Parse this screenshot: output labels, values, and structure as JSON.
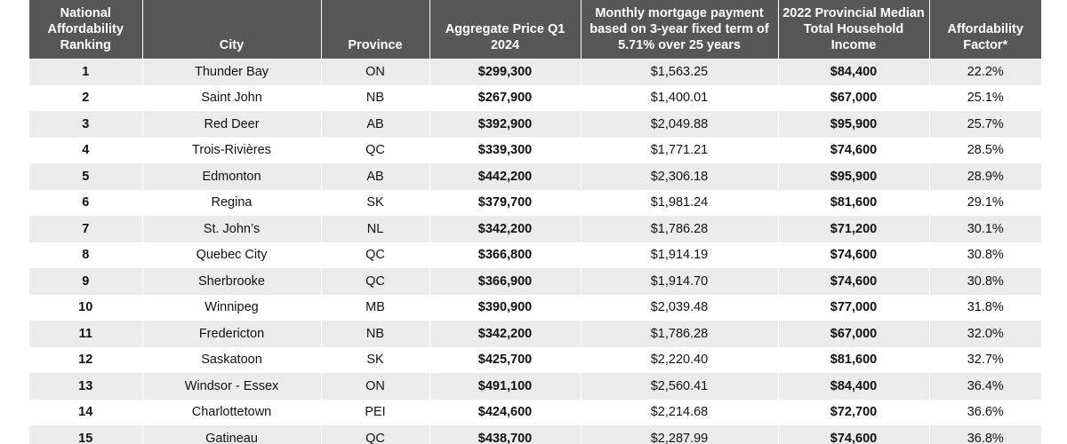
{
  "table": {
    "header": [
      "National Affordability Ranking",
      "City",
      "Province",
      "Aggregate Price Q1 2024",
      "Monthly mortgage payment based on 3-year fixed term of 5.71% over 25 years",
      "2022 Provincial Median Total Household Income",
      "Affordability Factor*"
    ],
    "rows": [
      [
        "1",
        "Thunder Bay",
        "ON",
        "$299,300",
        "$1,563.25",
        "$84,400",
        "22.2%"
      ],
      [
        "2",
        "Saint John",
        "NB",
        "$267,900",
        "$1,400.01",
        "$67,000",
        "25.1%"
      ],
      [
        "3",
        "Red Deer",
        "AB",
        "$392,900",
        "$2,049.88",
        "$95,900",
        "25.7%"
      ],
      [
        "4",
        "Trois-Rivières",
        "QC",
        "$339,300",
        "$1,771.21",
        "$74,600",
        "28.5%"
      ],
      [
        "5",
        "Edmonton",
        "AB",
        "$442,200",
        "$2,306.18",
        "$95,900",
        "28.9%"
      ],
      [
        "6",
        "Regina",
        "SK",
        "$379,700",
        "$1,981.24",
        "$81,600",
        "29.1%"
      ],
      [
        "7",
        "St. John’s",
        "NL",
        "$342,200",
        "$1,786.28",
        "$71,200",
        "30.1%"
      ],
      [
        "8",
        "Quebec City",
        "QC",
        "$366,800",
        "$1,914.19",
        "$74,600",
        "30.8%"
      ],
      [
        "9",
        "Sherbrooke",
        "QC",
        "$366,900",
        "$1,914.70",
        "$74,600",
        "30.8%"
      ],
      [
        "10",
        "Winnipeg",
        "MB",
        "$390,900",
        "$2,039.48",
        "$77,000",
        "31.8%"
      ],
      [
        "11",
        "Fredericton",
        "NB",
        "$342,200",
        "$1,786.28",
        "$67,000",
        "32.0%"
      ],
      [
        "12",
        "Saskatoon",
        "SK",
        "$425,700",
        "$2,220.40",
        "$81,600",
        "32.7%"
      ],
      [
        "13",
        "Windsor - Essex",
        "ON",
        "$491,100",
        "$2,560.41",
        "$84,400",
        "36.4%"
      ],
      [
        "14",
        "Charlottetown",
        "PEI",
        "$424,600",
        "$2,214.68",
        "$72,700",
        "36.6%"
      ],
      [
        "15",
        "Gatineau",
        "QC",
        "$438,700",
        "$2,287.99",
        "$74,600",
        "36.8%"
      ]
    ]
  }
}
